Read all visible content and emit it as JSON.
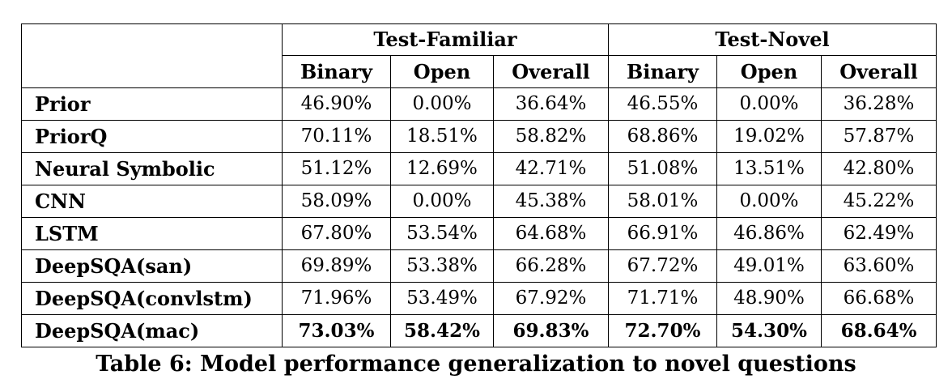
{
  "table": {
    "group_headers": [
      "Test-Familiar",
      "Test-Novel"
    ],
    "sub_headers": [
      "Binary",
      "Open",
      "Overall",
      "Binary",
      "Open",
      "Overall"
    ],
    "rows": [
      {
        "model": "Prior",
        "values": [
          "46.90%",
          "0.00%",
          "36.64%",
          "46.55%",
          "0.00%",
          "36.28%"
        ],
        "bold": false
      },
      {
        "model": "PriorQ",
        "values": [
          "70.11%",
          "18.51%",
          "58.82%",
          "68.86%",
          "19.02%",
          "57.87%"
        ],
        "bold": false
      },
      {
        "model": "Neural Symbolic",
        "values": [
          "51.12%",
          "12.69%",
          "42.71%",
          "51.08%",
          "13.51%",
          "42.80%"
        ],
        "bold": false
      },
      {
        "model": "CNN",
        "values": [
          "58.09%",
          "0.00%",
          "45.38%",
          "58.01%",
          "0.00%",
          "45.22%"
        ],
        "bold": false
      },
      {
        "model": "LSTM",
        "values": [
          "67.80%",
          "53.54%",
          "64.68%",
          "66.91%",
          "46.86%",
          "62.49%"
        ],
        "bold": false
      },
      {
        "model": "DeepSQA(san)",
        "values": [
          "69.89%",
          "53.38%",
          "66.28%",
          "67.72%",
          "49.01%",
          "63.60%"
        ],
        "bold": false
      },
      {
        "model": "DeepSQA(convlstm)",
        "values": [
          "71.96%",
          "53.49%",
          "67.92%",
          "71.71%",
          "48.90%",
          "66.68%"
        ],
        "bold": false
      },
      {
        "model": "DeepSQA(mac)",
        "values": [
          "73.03%",
          "58.42%",
          "69.83%",
          "72.70%",
          "54.30%",
          "68.64%"
        ],
        "bold": true
      }
    ]
  },
  "caption": "Table 6: Model performance generalization to novel questions"
}
